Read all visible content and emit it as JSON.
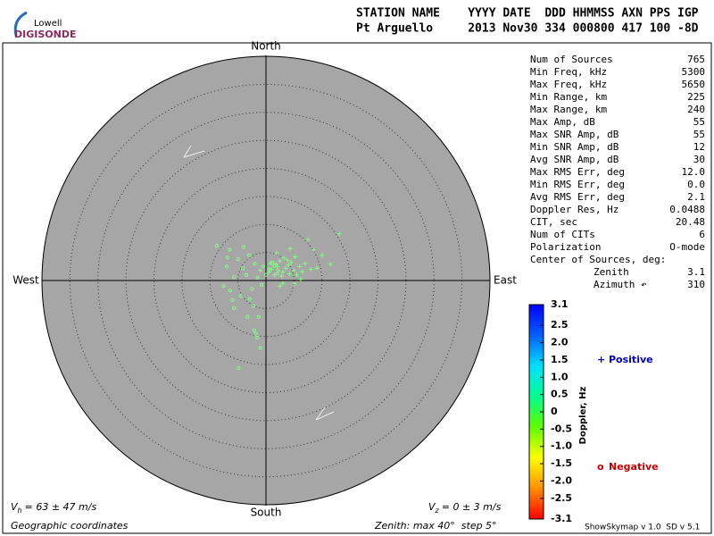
{
  "logo": {
    "top": "Lowell",
    "bottom": "DIGISONDE"
  },
  "header": {
    "labels": "STATION NAME    YYYY DATE  DDD HHMMSS AXN PPS IGP",
    "values": "Pt Arguello     2013 Nov30 334 000800 417 100 -8D"
  },
  "stats": {
    "rows": [
      [
        "Num of Sources",
        "765"
      ],
      [
        "Min Freq, kHz",
        "5300"
      ],
      [
        "Max Freq, kHz",
        "5650"
      ],
      [
        "Min Range, km",
        "225"
      ],
      [
        "Max Range, km",
        "240"
      ],
      [
        "Max Amp, dB",
        "55"
      ],
      [
        "Max SNR Amp, dB",
        "55"
      ],
      [
        "Min SNR Amp, dB",
        "12"
      ],
      [
        "Avg SNR Amp, dB",
        "30"
      ],
      [
        "Max RMS Err, deg",
        "12.0"
      ],
      [
        "Min RMS Err, deg",
        "0.0"
      ],
      [
        "Avg RMS Err, deg",
        "2.1"
      ],
      [
        "Doppler Res, Hz",
        "0.0488"
      ],
      [
        "CIT, sec",
        "20.48"
      ],
      [
        "Num of CITs",
        "6"
      ],
      [
        "Polarization",
        "O-mode"
      ]
    ],
    "center": {
      "title": "Center of Sources, deg:",
      "rows": [
        [
          "Zenith",
          "3.1"
        ],
        [
          "Azimuth ↶",
          "310"
        ]
      ]
    }
  },
  "footer": {
    "vh": [
      "V",
      "h",
      "= 63 ± 47 m/s"
    ],
    "vz": [
      "V",
      "z",
      "= 0 ± 3 m/s"
    ],
    "coords": "Geographic coordinates",
    "zenith": "Zenith: max 40°  step 5°",
    "version": "ShowSkymap v 1.0  SD v 5.1"
  },
  "chart_data": {
    "type": "skymap",
    "directions": {
      "north": "North",
      "south": "South",
      "west": "West",
      "east": "East"
    },
    "rlim": [
      0,
      40
    ],
    "rticks": [
      5,
      10,
      15,
      20,
      25,
      30,
      35
    ],
    "background": "#a6a6a6",
    "series": [
      {
        "name": "Positive",
        "marker": "+",
        "legend_color": "#0000cc",
        "color": "#80ff80",
        "x": [
          1.0,
          2.0,
          3.0,
          4.0,
          2.5,
          1.5,
          3.5,
          5.0,
          4.5,
          2.8,
          6.0,
          5.5,
          3.2,
          1.8,
          4.2,
          7.0,
          6.5,
          2.2,
          3.8,
          0.8,
          5.2,
          8.0,
          9.1,
          7.5,
          13.1,
          11.5,
          1.9,
          4.3,
          5.1,
          3.0,
          6.2,
          2.5,
          0.5,
          10.0,
          8.5,
          -1.0
        ],
        "y": [
          2.0,
          2.5,
          1.5,
          2.8,
          3.5,
          1.0,
          2.2,
          1.8,
          3.2,
          0.8,
          2.5,
          1.0,
          4.0,
          2.9,
          1.2,
          3.0,
          1.6,
          1.8,
          3.6,
          3.0,
          4.2,
          2.0,
          2.2,
          7.3,
          8.3,
          2.9,
          4.9,
          5.7,
          -0.6,
          -0.5,
          0.2,
          -1.0,
          1.5,
          4.5,
          5.5,
          1.8
        ]
      },
      {
        "name": "Negative",
        "marker": "o",
        "legend_color": "#cc0000",
        "color": "#80ff80",
        "x": [
          -8.8,
          -6.9,
          -4.1,
          -5.7,
          -6.4,
          -5.7,
          -7.6,
          -2.9,
          -1.3,
          -3.3,
          -2.1,
          -1.6,
          -1.8,
          -4.9,
          -3.0,
          -2.0,
          -0.5,
          0.5,
          1.2,
          -1.5,
          -3.5,
          -2.5,
          -7.0,
          -5.0,
          -4.5,
          -6.0,
          0.0,
          1.5,
          2.0,
          -0.8,
          -2.2,
          -1.0,
          -6.5,
          -4.0
        ],
        "y": [
          6.2,
          4.1,
          2.2,
          0.6,
          -1.8,
          -4.9,
          -1.0,
          -3.3,
          -6.5,
          -6.5,
          -8.9,
          -10.2,
          -9.5,
          -15.6,
          4.5,
          3.0,
          2.5,
          2.0,
          3.2,
          0.5,
          1.0,
          -1.5,
          2.5,
          3.8,
          -2.8,
          -3.5,
          1.0,
          2.6,
          1.2,
          -0.8,
          -4.5,
          -12.0,
          5.5,
          6.0
        ]
      }
    ],
    "colorbar": {
      "label": "Doppler, Hz",
      "lim": [
        -3.1,
        3.1
      ],
      "ticks": [
        3.1,
        2.5,
        {
          "value": 2,
          "label": "2.0"
        },
        1.5,
        {
          "value": 1,
          "label": "1.0"
        },
        0.5,
        0,
        -0.5,
        {
          "value": -1,
          "label": "-1.0"
        },
        -1.5,
        {
          "value": -2,
          "label": "-2.0"
        },
        -2.5,
        -3.1
      ],
      "colors": [
        "#0000ff",
        "#0060ff",
        "#00e0ff",
        "#00ff90",
        "#60ff00",
        "#ffff00",
        "#ff9000",
        "#ff0000"
      ]
    }
  }
}
